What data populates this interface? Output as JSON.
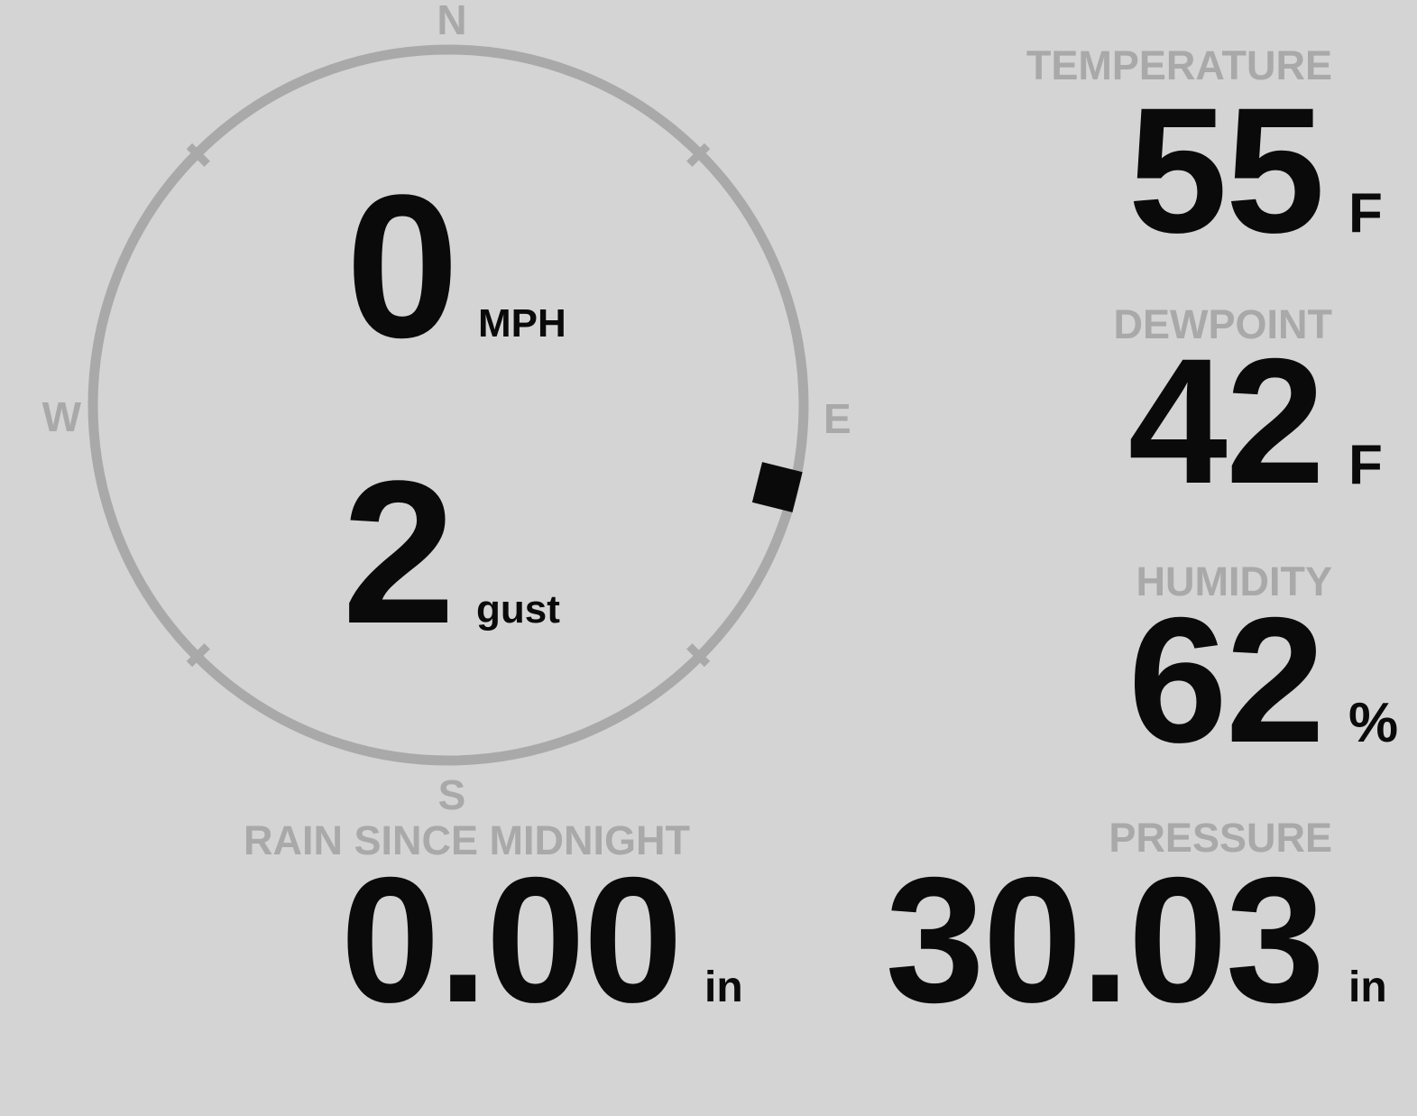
{
  "colors": {
    "background": "#d4d4d4",
    "muted": "#a9a9a9",
    "value": "#0a0a0a"
  },
  "wind": {
    "speed_value": "0",
    "speed_unit": "MPH",
    "gust_value": "2",
    "gust_unit": "gust",
    "direction_degrees": 104,
    "compass_labels": {
      "n": "N",
      "e": "E",
      "s": "S",
      "w": "W"
    }
  },
  "readings": {
    "temperature": {
      "label": "TEMPERATURE",
      "value": "55",
      "unit": "F"
    },
    "dewpoint": {
      "label": "DEWPOINT",
      "value": "42",
      "unit": "F"
    },
    "humidity": {
      "label": "HUMIDITY",
      "value": "62",
      "unit": "%"
    },
    "rain_since_midnight": {
      "label": "RAIN SINCE MIDNIGHT",
      "value": "0.00",
      "unit": "in"
    },
    "pressure": {
      "label": "PRESSURE",
      "value": "30.03",
      "unit": "in"
    }
  }
}
